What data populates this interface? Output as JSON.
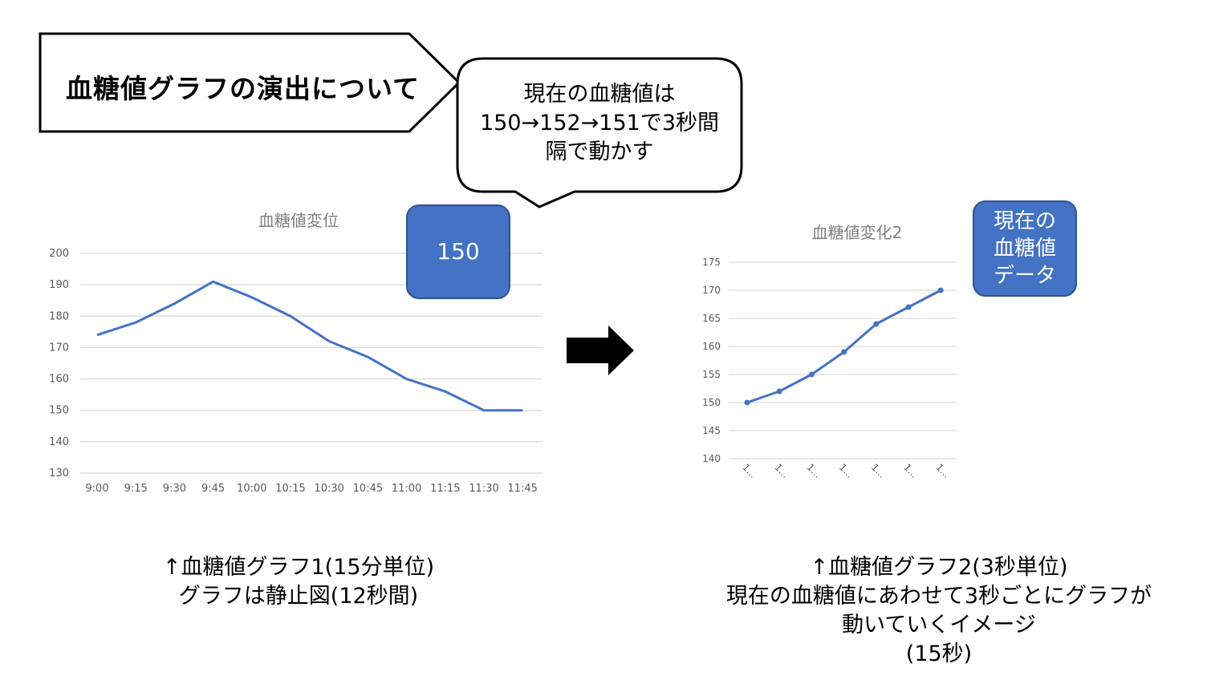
{
  "title": "血糖値グラフの演出について",
  "bubble": {
    "lines": [
      "現在の血糖値は",
      "150→152→151で3秒間",
      "隔で動かす"
    ]
  },
  "badge_current": "150",
  "badge_data": [
    "現在の",
    "血糖値",
    "データ"
  ],
  "caption_left": [
    "↑血糖値グラフ1(15分単位)",
    "グラフは静止図(12秒間)"
  ],
  "caption_right": [
    "↑血糖値グラフ2(3秒単位)",
    "現在の血糖値にあわせて3秒ごとにグラフが",
    "動いていくイメージ",
    "(15秒)"
  ],
  "colors": {
    "series": "#4472c4",
    "grid": "#d9d9d9",
    "axis_text": "#595959",
    "badge": "#4472c4"
  },
  "icons": {
    "arrow": "right-arrow-icon"
  },
  "chart_data": [
    {
      "type": "line",
      "title": "血糖値変位",
      "categories": [
        "9:00",
        "9:15",
        "9:30",
        "9:45",
        "10:00",
        "10:15",
        "10:30",
        "10:45",
        "11:00",
        "11:15",
        "11:30",
        "11:45"
      ],
      "values": [
        174,
        178,
        184,
        191,
        186,
        180,
        172,
        167,
        160,
        156,
        150,
        150
      ],
      "ylim": [
        130,
        200
      ],
      "yticks": [
        130,
        140,
        150,
        160,
        170,
        180,
        190,
        200
      ],
      "grid": true,
      "markers": false
    },
    {
      "type": "line",
      "title": "血糖値変化2",
      "categories": [
        "1...",
        "1...",
        "1...",
        "1...",
        "1...",
        "1...",
        "1..."
      ],
      "values": [
        150,
        152,
        155,
        159,
        164,
        167,
        170
      ],
      "ylim": [
        140,
        175
      ],
      "yticks": [
        140,
        145,
        150,
        155,
        160,
        165,
        170,
        175
      ],
      "grid": true,
      "markers": true
    }
  ]
}
